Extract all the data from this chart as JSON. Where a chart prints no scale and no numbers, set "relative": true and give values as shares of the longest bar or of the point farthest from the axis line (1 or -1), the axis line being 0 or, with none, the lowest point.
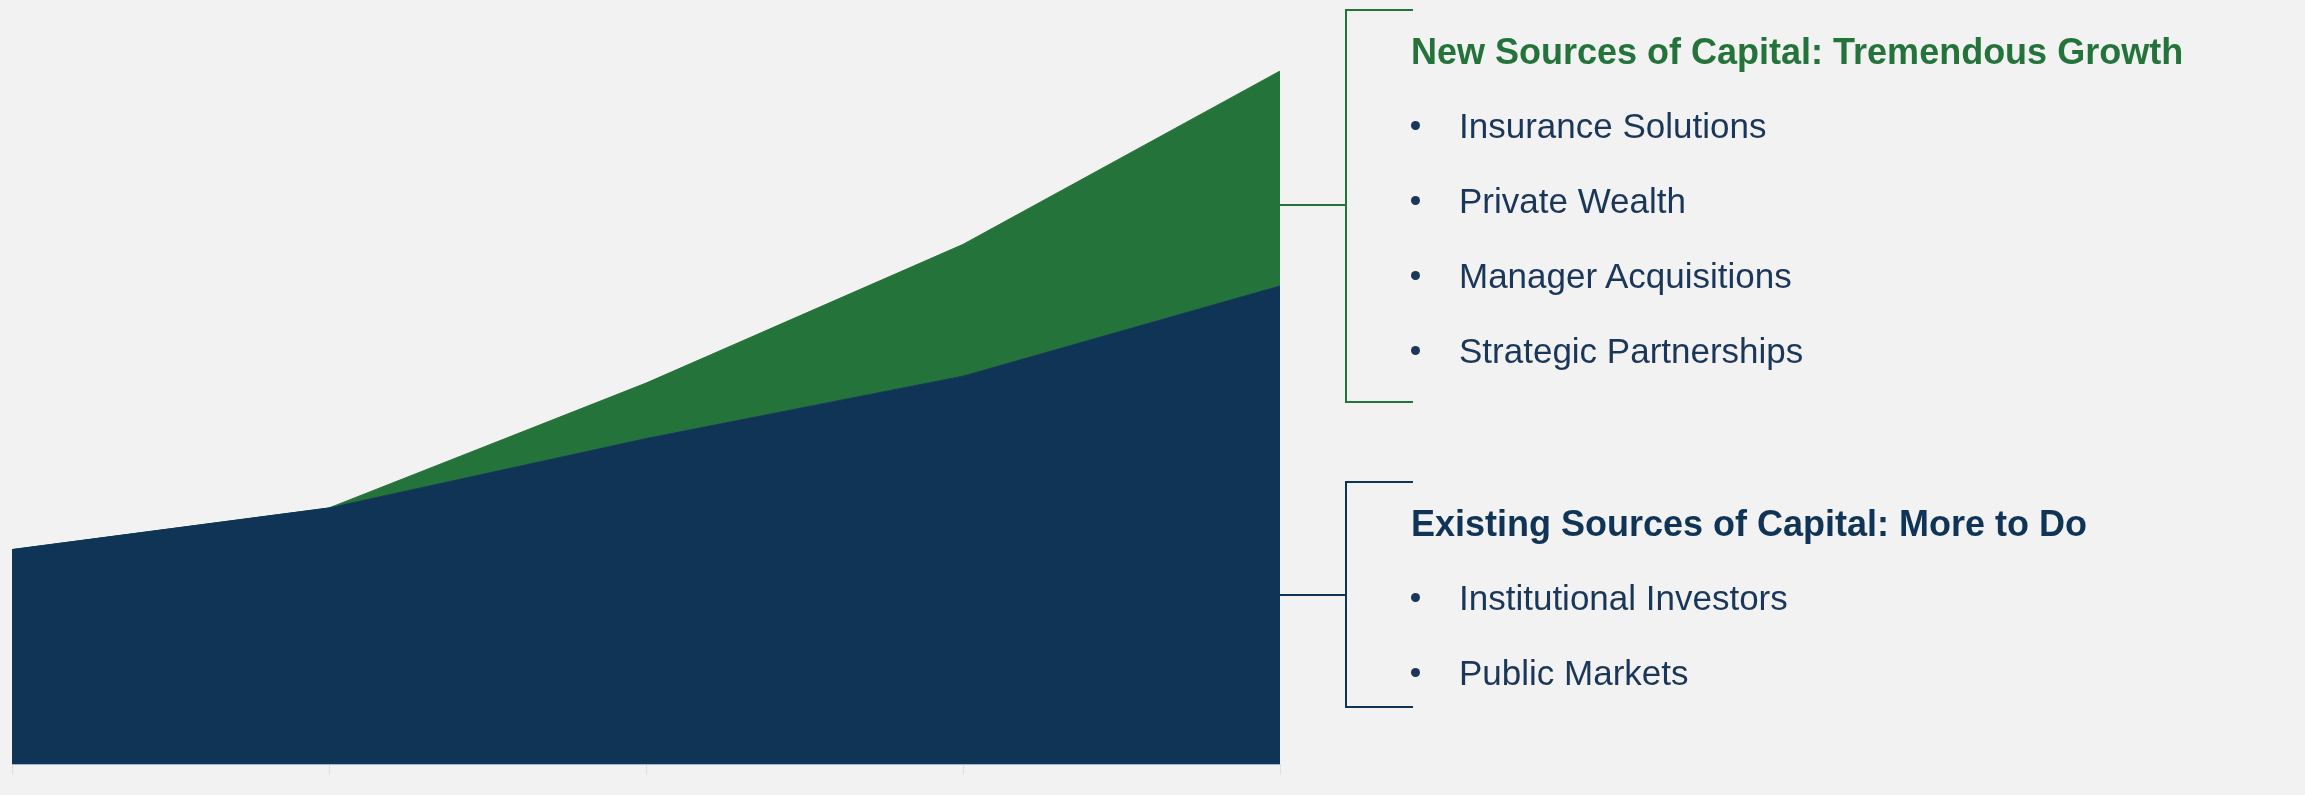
{
  "chart_data": {
    "type": "area",
    "stacked": true,
    "relative": true,
    "legend": "right",
    "categories": [
      null,
      null,
      null,
      null,
      null
    ],
    "series": [
      {
        "name": "Existing Sources of Capital: More to Do",
        "color": "#0f3455",
        "values": [
          0.31,
          0.37,
          0.47,
          0.56,
          0.69
        ]
      },
      {
        "name": "New Sources of Capital: Tremendous Growth",
        "color": "#24733a",
        "values": [
          0,
          0,
          0.08,
          0.19,
          0.31
        ]
      }
    ],
    "annotations": [
      "Insurance Solutions",
      "Private Wealth",
      "Manager Acquisitions",
      "Strategic Partnerships",
      "Institutional Investors",
      "Public Markets"
    ]
  }
}
